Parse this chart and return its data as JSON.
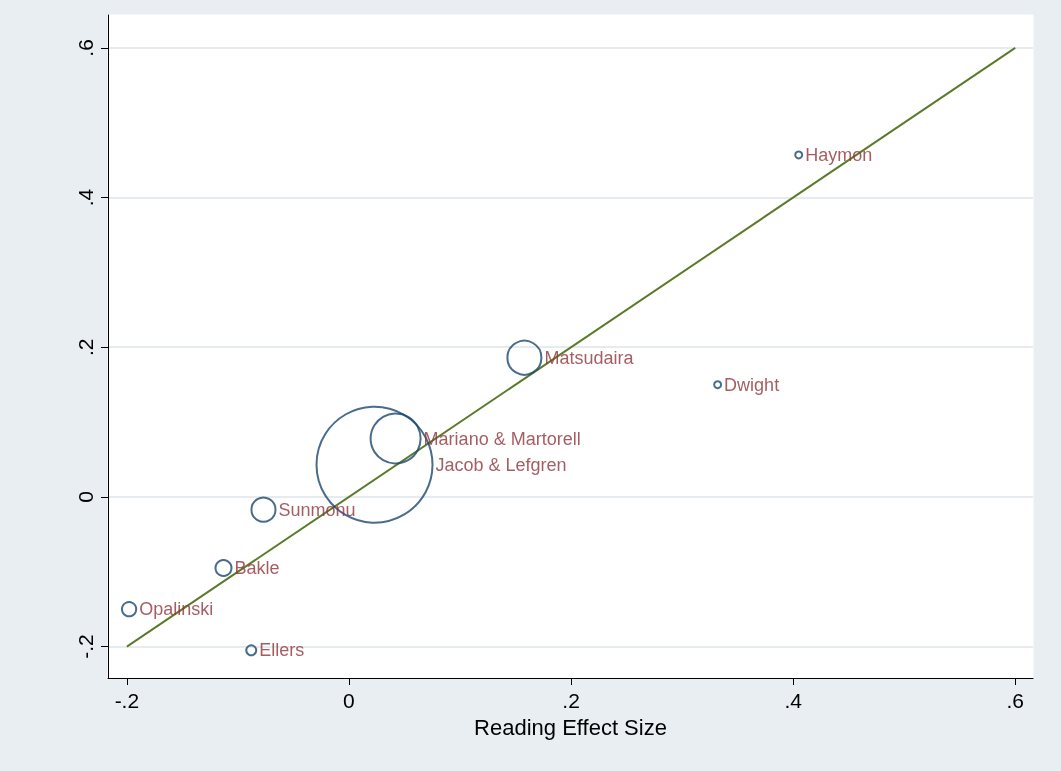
{
  "chart_data": {
    "type": "bubble",
    "xlabel": "Reading Effect Size",
    "xlim": [
      -0.217,
      0.616
    ],
    "ylim": [
      -0.242,
      0.644
    ],
    "xticks": [
      {
        "value": -0.2,
        "label": "-.2"
      },
      {
        "value": 0,
        "label": "0"
      },
      {
        "value": 0.2,
        "label": ".2"
      },
      {
        "value": 0.4,
        "label": ".4"
      },
      {
        "value": 0.6,
        "label": ".6"
      }
    ],
    "yticks": [
      {
        "value": -0.2,
        "label": "-.2"
      },
      {
        "value": 0,
        "label": "0"
      },
      {
        "value": 0.2,
        "label": ".2"
      },
      {
        "value": 0.4,
        "label": ".4"
      },
      {
        "value": 0.6,
        "label": ".6"
      }
    ],
    "grid": "y",
    "series": [
      {
        "color": "#1a476f",
        "x": [
          0.405,
          0.332,
          0.158,
          0.042,
          0.023,
          -0.077,
          -0.113,
          -0.198,
          -0.088
        ],
        "values": [
          0.457,
          0.15,
          0.186,
          0.078,
          0.043,
          -0.017,
          -0.095,
          -0.15,
          -0.205
        ],
        "sizes": [
          0.0036,
          0.0036,
          0.086,
          0.186,
          1,
          0.043,
          0.019,
          0.015,
          0.0074
        ],
        "value_labels": [
          "Haymon",
          "Dwight",
          "Matsudaira",
          "Mariano & Martorell",
          "Jacob & Lefgren",
          "Sunmonu",
          "Bakle",
          "Opalinski",
          "Ellers"
        ]
      },
      {
        "type": "line",
        "color": "#5c7a29",
        "x": [
          -0.2,
          0.6
        ],
        "values": [
          -0.2,
          0.6
        ]
      }
    ]
  }
}
